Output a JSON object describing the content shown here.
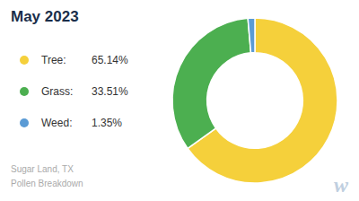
{
  "chart_data": {
    "type": "pie",
    "title": "May 2023",
    "categories": [
      "Tree:",
      "Grass:",
      "Weed:"
    ],
    "values": [
      65.14,
      33.51,
      1.35
    ],
    "value_labels": [
      "65.14%",
      "33.51%",
      "1.35%"
    ],
    "colors": [
      "#f5d03b",
      "#4caf50",
      "#5b9bd5"
    ],
    "legend": "left",
    "annotations": [
      "Sugar Land, TX",
      "Pollen Breakdown",
      "w"
    ]
  }
}
